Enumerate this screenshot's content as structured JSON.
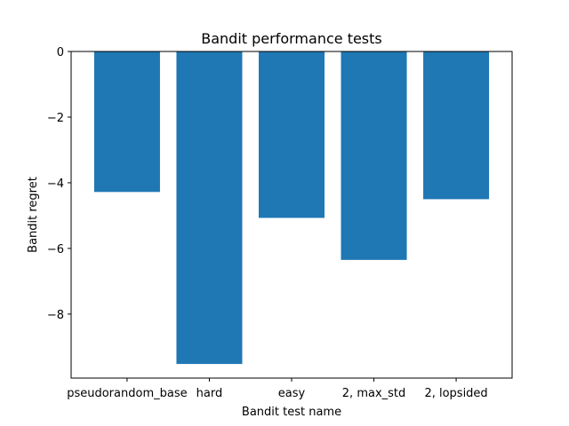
{
  "chart_data": {
    "type": "bar",
    "title": "Bandit performance tests",
    "xlabel": "Bandit test name",
    "ylabel": "Bandit regret",
    "categories": [
      "pseudorandom_base",
      "hard",
      "easy",
      "2, max_std",
      "2, lopsided"
    ],
    "values": [
      -4.28,
      -9.52,
      -5.07,
      -6.35,
      -4.5
    ],
    "ylim": [
      -9.95,
      0
    ],
    "yticks": [
      0,
      -2,
      -4,
      -6,
      -8
    ],
    "ytick_labels": [
      "0",
      "−2",
      "−4",
      "−6",
      "−8"
    ],
    "grid": false,
    "bar_color": "#1f77b4"
  }
}
